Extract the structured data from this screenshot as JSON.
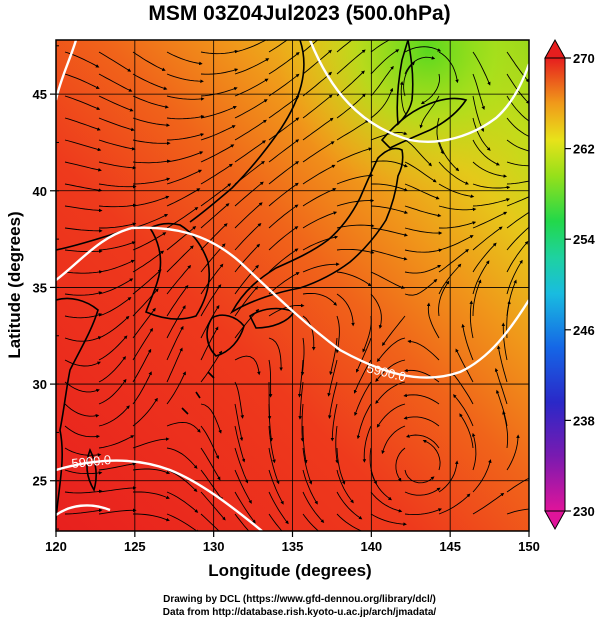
{
  "title": "MSM 03Z04Jul2023 (500.0hPa)",
  "map": {
    "xlabel": "Longitude (degrees)",
    "ylabel": "Latitude  (degrees)",
    "lon_range": [
      120,
      150
    ],
    "lat_range": [
      22.4,
      47.8
    ],
    "lon_ticks": [
      "120",
      "125",
      "130",
      "135",
      "140",
      "145",
      "150"
    ],
    "lat_ticks": [
      "25",
      "30",
      "35",
      "40",
      "45"
    ],
    "contour_labels": [
      "5900.0",
      "5900.0"
    ],
    "fields": [
      "temperature (color shading)",
      "wind streamlines",
      "geopotential height contours"
    ]
  },
  "colorbar": {
    "min": 230,
    "max": 270,
    "tick_labels": [
      "270",
      "262",
      "254",
      "246",
      "238",
      "230"
    ],
    "colors": [
      "#e0149a",
      "#3a1fb8",
      "#1560e0",
      "#19c0e0",
      "#22d86a",
      "#8ee01a",
      "#e6e61a",
      "#f0a41a",
      "#ee4a1a",
      "#e61e1e"
    ]
  },
  "credits": {
    "line1": "Drawing by DCL (https://www.gfd-dennou.org/library/dcl/)",
    "line2": "Data from http://database.rish.kyoto-u.ac.jp/arch/jmadata/"
  }
}
